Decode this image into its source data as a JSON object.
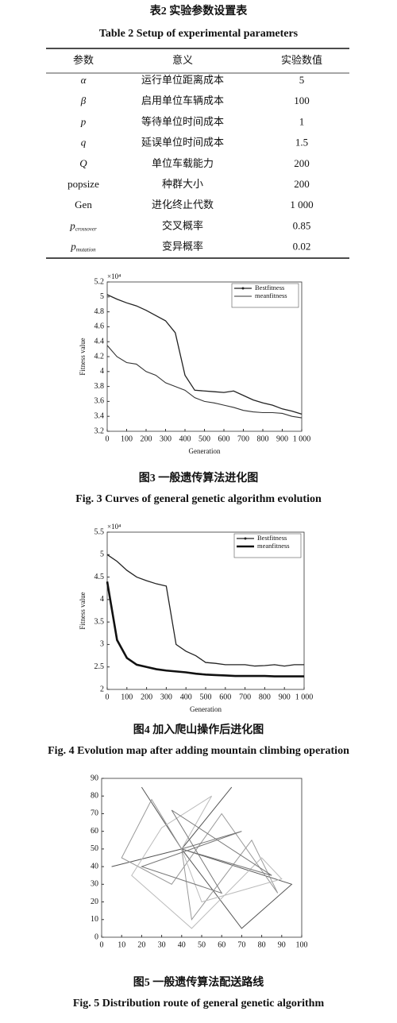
{
  "table": {
    "title_cn": "表2  实验参数设置表",
    "title_en": "Table 2  Setup of experimental parameters",
    "headers": [
      "参数",
      "意义",
      "实验数值"
    ],
    "rows": [
      {
        "symbol": "α",
        "meaning": "运行单位距离成本",
        "value": "5"
      },
      {
        "symbol": "β",
        "meaning": "启用单位车辆成本",
        "value": "100"
      },
      {
        "symbol": "p",
        "meaning": "等待单位时间成本",
        "value": "1"
      },
      {
        "symbol": "q",
        "meaning": "延误单位时间成本",
        "value": "1.5"
      },
      {
        "symbol": "Q",
        "meaning": "单位车载能力",
        "value": "200"
      },
      {
        "symbol": "popsize",
        "meaning": "种群大小",
        "value": "200"
      },
      {
        "symbol": "Gen",
        "meaning": "进化终止代数",
        "value": "1 000"
      },
      {
        "symbol": "p",
        "sub": "crossover",
        "meaning": "交叉概率",
        "value": "0.85"
      },
      {
        "symbol": "p",
        "sub": "mutation",
        "meaning": "变异概率",
        "value": "0.02"
      }
    ]
  },
  "chart_data": [
    {
      "type": "line",
      "caption_cn": "图3  一般遗传算法进化图",
      "caption_en": "Fig. 3  Curves of general genetic algorithm evolution",
      "xlabel": "Generation",
      "ylabel": "Fitness value",
      "y_multiplier": "×10⁴",
      "x": [
        0,
        50,
        100,
        150,
        200,
        250,
        300,
        350,
        400,
        450,
        500,
        550,
        600,
        650,
        700,
        750,
        800,
        850,
        900,
        950,
        1000
      ],
      "series": [
        {
          "name": "Bestfitness",
          "color": "#222",
          "width": 1.3,
          "marker": true,
          "values": [
            5.03,
            4.97,
            4.92,
            4.88,
            4.82,
            4.75,
            4.68,
            4.52,
            3.95,
            3.75,
            3.74,
            3.73,
            3.72,
            3.74,
            3.68,
            3.62,
            3.58,
            3.55,
            3.5,
            3.47,
            3.43
          ]
        },
        {
          "name": "meanfitness",
          "color": "#333",
          "width": 1.1,
          "marker": false,
          "values": [
            4.35,
            4.2,
            4.12,
            4.1,
            4.0,
            3.95,
            3.85,
            3.8,
            3.75,
            3.65,
            3.6,
            3.58,
            3.55,
            3.52,
            3.48,
            3.46,
            3.45,
            3.45,
            3.44,
            3.4,
            3.38
          ]
        }
      ],
      "xlim": [
        0,
        1000
      ],
      "xticks": [
        0,
        100,
        200,
        300,
        400,
        500,
        600,
        700,
        800,
        900,
        {
          "value": 1000,
          "label": "1 000"
        }
      ],
      "ylim": [
        3.2,
        5.2
      ],
      "yticks": [
        3.2,
        3.4,
        3.6,
        3.8,
        4,
        4.2,
        4.4,
        4.6,
        4.8,
        5,
        5.2
      ],
      "legend": "top-right"
    },
    {
      "type": "line",
      "caption_cn": "图4  加入爬山操作后进化图",
      "caption_en": "Fig. 4  Evolution map after adding mountain climbing operation",
      "xlabel": "Generation",
      "ylabel": "Fitness value",
      "y_multiplier": "×10⁴",
      "x": [
        0,
        50,
        100,
        150,
        200,
        250,
        300,
        350,
        400,
        450,
        500,
        550,
        600,
        650,
        700,
        750,
        800,
        850,
        900,
        950,
        1000
      ],
      "series": [
        {
          "name": "Bestfitness",
          "color": "#222",
          "width": 1.3,
          "marker": true,
          "values": [
            5.0,
            4.85,
            4.65,
            4.5,
            4.42,
            4.35,
            4.3,
            3.0,
            2.85,
            2.75,
            2.6,
            2.58,
            2.55,
            2.55,
            2.55,
            2.52,
            2.53,
            2.55,
            2.52,
            2.55,
            2.55
          ]
        },
        {
          "name": "meanfitness",
          "color": "#111",
          "width": 2.6,
          "marker": false,
          "values": [
            4.4,
            3.1,
            2.7,
            2.55,
            2.5,
            2.45,
            2.42,
            2.4,
            2.38,
            2.35,
            2.33,
            2.32,
            2.31,
            2.3,
            2.3,
            2.3,
            2.3,
            2.29,
            2.29,
            2.29,
            2.29
          ]
        }
      ],
      "xlim": [
        0,
        1000
      ],
      "xticks": [
        0,
        100,
        200,
        300,
        400,
        500,
        600,
        700,
        800,
        900,
        {
          "value": 1000,
          "label": "1 000"
        }
      ],
      "ylim": [
        2,
        5.5
      ],
      "yticks": [
        2,
        2.5,
        3,
        3.5,
        4,
        4.5,
        5,
        5.5
      ],
      "legend": "top-right"
    },
    {
      "type": "route",
      "caption_cn": "图5  一般遗传算法配送路线",
      "caption_en": "Fig. 5  Distribution route of general genetic algorithm",
      "series": [
        {
          "color": "#555",
          "x": [
            40,
            20,
            40,
            65,
            40,
            95,
            70,
            40,
            5,
            40
          ],
          "y": [
            50,
            85,
            50,
            85,
            50,
            30,
            5,
            50,
            40,
            50
          ]
        },
        {
          "color": "#999",
          "x": [
            40,
            25,
            10,
            35,
            60,
            88,
            75,
            45,
            40
          ],
          "y": [
            50,
            78,
            45,
            30,
            70,
            25,
            55,
            10,
            50
          ]
        },
        {
          "color": "#bbb",
          "x": [
            40,
            55,
            30,
            15,
            45,
            80,
            90,
            50,
            40
          ],
          "y": [
            50,
            80,
            62,
            35,
            5,
            45,
            33,
            20,
            50
          ]
        },
        {
          "color": "#777",
          "x": [
            40,
            70,
            20,
            60,
            35,
            85,
            40
          ],
          "y": [
            50,
            60,
            40,
            25,
            72,
            35,
            50
          ]
        }
      ],
      "xlim": [
        0,
        100
      ],
      "xticks": [
        0,
        10,
        20,
        30,
        40,
        50,
        60,
        70,
        80,
        90,
        100
      ],
      "ylim": [
        0,
        90
      ],
      "yticks": [
        0,
        10,
        20,
        30,
        40,
        50,
        60,
        70,
        80,
        90
      ]
    }
  ]
}
